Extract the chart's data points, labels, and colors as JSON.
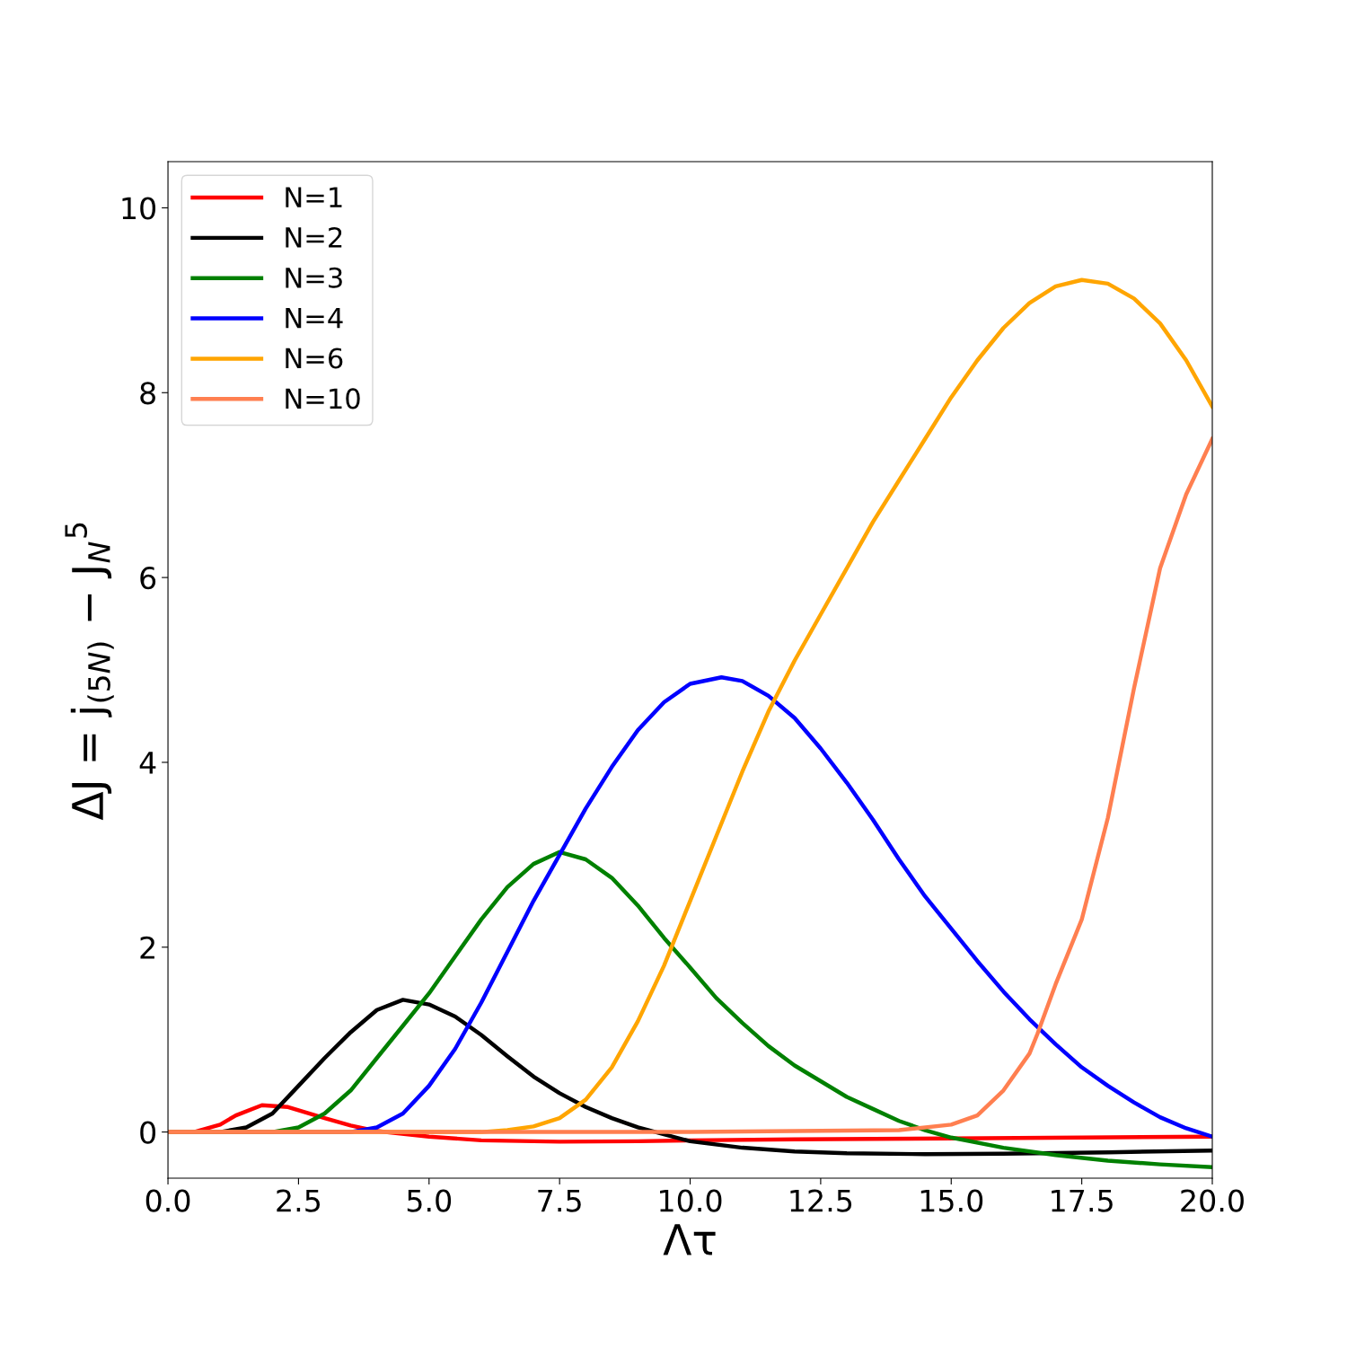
{
  "chart_data": {
    "type": "line",
    "xlabel": "Λτ",
    "ylabel": "ΔJ = j$_{(5N)}$ − J$_{N}$$^{5}$",
    "xlim": [
      0,
      20
    ],
    "ylim": [
      -0.5,
      10.5
    ],
    "xticks": [
      {
        "value": 0,
        "label": "0.0"
      },
      2.5,
      {
        "value": 5,
        "label": "5.0"
      },
      7.5,
      {
        "value": 10,
        "label": "10.0"
      },
      12.5,
      {
        "value": 15,
        "label": "15.0"
      },
      17.5,
      {
        "value": 20,
        "label": "20.0"
      }
    ],
    "yticks": [
      0,
      2,
      4,
      6,
      8,
      10
    ],
    "grid": false,
    "legend": "top left",
    "line_style": "solid",
    "marker": "none",
    "series": [
      {
        "name": "N=1",
        "color": "#ff0000",
        "x": [
          0,
          0.5,
          1,
          1.3,
          1.8,
          2.3,
          3,
          3.5,
          4,
          5,
          6,
          7.5,
          9,
          10,
          12,
          15,
          17.5,
          20
        ],
        "values": [
          0,
          0,
          0.08,
          0.18,
          0.29,
          0.27,
          0.15,
          0.07,
          0.01,
          -0.05,
          -0.09,
          -0.105,
          -0.1,
          -0.09,
          -0.08,
          -0.07,
          -0.06,
          -0.05
        ]
      },
      {
        "name": "N=2",
        "color": "#000000",
        "x": [
          0,
          1,
          1.5,
          2,
          2.5,
          3,
          3.5,
          4,
          4.5,
          5,
          5.5,
          6,
          6.5,
          7,
          7.5,
          8,
          8.5,
          9,
          10,
          11,
          12,
          13,
          14.5,
          16,
          18,
          20
        ],
        "values": [
          0,
          0,
          0.05,
          0.2,
          0.5,
          0.8,
          1.08,
          1.32,
          1.43,
          1.38,
          1.25,
          1.05,
          0.82,
          0.6,
          0.42,
          0.27,
          0.15,
          0.05,
          -0.1,
          -0.17,
          -0.21,
          -0.23,
          -0.24,
          -0.235,
          -0.22,
          -0.2
        ]
      },
      {
        "name": "N=3",
        "color": "#008000",
        "x": [
          0,
          2,
          2.5,
          3,
          3.5,
          4,
          4.5,
          5,
          5.5,
          6,
          6.5,
          7,
          7.5,
          8,
          8.5,
          9,
          9.5,
          10,
          10.5,
          11,
          11.5,
          12,
          12.5,
          13,
          13.5,
          14,
          14.5,
          15,
          16,
          17,
          18,
          19,
          20
        ],
        "values": [
          0,
          0,
          0.05,
          0.2,
          0.45,
          0.8,
          1.15,
          1.5,
          1.9,
          2.3,
          2.65,
          2.9,
          3.03,
          2.95,
          2.75,
          2.45,
          2.1,
          1.78,
          1.45,
          1.18,
          0.93,
          0.72,
          0.55,
          0.38,
          0.25,
          0.12,
          0.02,
          -0.06,
          -0.17,
          -0.25,
          -0.31,
          -0.35,
          -0.38
        ]
      },
      {
        "name": "N=4",
        "color": "#0000ff",
        "x": [
          0,
          3.5,
          4,
          4.5,
          5,
          5.5,
          6,
          6.5,
          7,
          7.5,
          8,
          8.5,
          9,
          9.5,
          10,
          10.6,
          11,
          11.5,
          12,
          12.5,
          13,
          13.5,
          14,
          14.5,
          15,
          15.5,
          16,
          16.5,
          17,
          17.5,
          18,
          18.5,
          19,
          19.5,
          20
        ],
        "values": [
          0,
          0,
          0.05,
          0.2,
          0.5,
          0.9,
          1.4,
          1.95,
          2.5,
          3.0,
          3.5,
          3.95,
          4.35,
          4.65,
          4.85,
          4.92,
          4.88,
          4.72,
          4.48,
          4.15,
          3.78,
          3.38,
          2.95,
          2.55,
          2.2,
          1.85,
          1.52,
          1.22,
          0.95,
          0.7,
          0.5,
          0.32,
          0.16,
          0.04,
          -0.05
        ]
      },
      {
        "name": "N=6",
        "color": "#ffa500",
        "x": [
          0,
          6,
          6.5,
          7,
          7.5,
          8,
          8.5,
          9,
          9.5,
          10,
          10.5,
          11,
          11.5,
          12,
          12.5,
          13,
          13.5,
          14,
          14.5,
          15,
          15.5,
          16,
          16.5,
          17,
          17.5,
          18,
          18.5,
          19,
          19.5,
          20
        ],
        "values": [
          0,
          0,
          0.02,
          0.06,
          0.15,
          0.35,
          0.7,
          1.2,
          1.8,
          2.5,
          3.2,
          3.9,
          4.55,
          5.1,
          5.6,
          6.1,
          6.6,
          7.05,
          7.5,
          7.95,
          8.35,
          8.7,
          8.97,
          9.15,
          9.22,
          9.18,
          9.02,
          8.75,
          8.35,
          7.85
        ]
      },
      {
        "name": "N=10",
        "color": "#ff7f50",
        "x": [
          0,
          10,
          14,
          15,
          15.5,
          16,
          16.5,
          16.65,
          17,
          17.5,
          18,
          18.5,
          19,
          19.5,
          20
        ],
        "values": [
          0,
          0,
          0.02,
          0.08,
          0.18,
          0.45,
          0.85,
          1.06,
          1.6,
          2.3,
          3.4,
          4.8,
          6.1,
          6.9,
          7.5
        ]
      }
    ]
  }
}
